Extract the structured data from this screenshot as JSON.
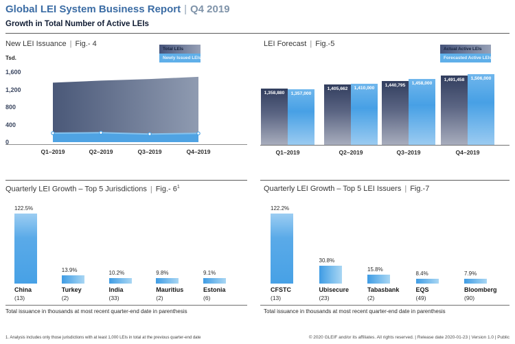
{
  "header": {
    "title": "Global LEI System Business Report",
    "separator": "|",
    "period": "Q4 2019",
    "subtitle": "Growth in Total Number of Active LEIs"
  },
  "footer": {
    "footnote": "1. Analysis includes only those jurisdictions with at least 1,000 LEIs in total at the previous quarter-end date",
    "copyright": "© 2020 GLEIF and/or its affiliates. All rights reserved.  |  Release date 2020-01-23  |  Version 1.0  |  Public"
  },
  "colors": {
    "title_blue": "#3b6ca4",
    "dark_series_top": "#323e5e",
    "dark_series_bottom": "#a8adbd",
    "light_blue_series": "#47a0e5",
    "area_gradient_left": "#4a5878",
    "area_gradient_right": "#8f9bb1"
  },
  "chart_data": [
    {
      "id": "fig4",
      "type": "area",
      "title": "New LEI Issuance",
      "figure": "Fig.- 4",
      "unit_label": "Tsd.",
      "legend": [
        "Total LEIs",
        "Newly Issued LEIs"
      ],
      "categories": [
        "Q1–2019",
        "Q2–2019",
        "Q3–2019",
        "Q4–2019"
      ],
      "series": [
        {
          "name": "Total LEIs",
          "values": [
            1359,
            1406,
            1441,
            1491
          ]
        },
        {
          "name": "Newly Issued LEIs",
          "values": [
            205,
            215,
            185,
            200
          ]
        }
      ],
      "yticks": [
        0,
        400,
        800,
        1200,
        1600
      ],
      "ylim": [
        0,
        1600
      ],
      "grid": false,
      "legend_position": "top-right"
    },
    {
      "id": "fig5",
      "type": "bar",
      "title": "LEI Forecast",
      "figure": "Fig.-5",
      "legend": [
        "Actual Active LEIs",
        "Forecasted Active LEIs"
      ],
      "categories": [
        "Q1–2019",
        "Q2–2019",
        "Q3–2019",
        "Q4–2019"
      ],
      "series": [
        {
          "name": "Actual Active LEIs",
          "values": [
            1358880,
            1405662,
            1440795,
            1491458
          ],
          "labels": [
            "1,358,880",
            "1,405,662",
            "1,440,795",
            "1,491,458"
          ]
        },
        {
          "name": "Forecasted Active LEIs",
          "values": [
            1357000,
            1410000,
            1458000,
            1506000
          ],
          "labels": [
            "1,357,000",
            "1,410,000",
            "1,458,000",
            "1,506,000"
          ]
        }
      ],
      "hidden_axis_min": 800000,
      "legend_position": "top-right"
    },
    {
      "id": "fig6",
      "type": "bar",
      "title": "Quarterly LEI Growth – Top 5 Jurisdictions",
      "figure": "Fig.- 6",
      "figure_superscript": "1",
      "categories": [
        "China",
        "Turkey",
        "India",
        "Mauritius",
        "Estonia"
      ],
      "counts": [
        "(13)",
        "(2)",
        "(33)",
        "(2)",
        "(6)"
      ],
      "values": [
        122.5,
        13.9,
        10.2,
        9.8,
        9.1
      ],
      "value_labels": [
        "122.5%",
        "13.9%",
        "10.2%",
        "9.8%",
        "9.1%"
      ],
      "note": "Total issuance in thousands at most recent quarter-end date in parenthesis"
    },
    {
      "id": "fig7",
      "type": "bar",
      "title": "Quarterly LEI Growth – Top 5 LEI Issuers",
      "figure": "Fig.-7",
      "categories": [
        "CFSTC",
        "Ubisecure",
        "Tabasbank",
        "EQS",
        "Bloomberg"
      ],
      "counts": [
        "(13)",
        "(23)",
        "(2)",
        "(49)",
        "(90)"
      ],
      "values": [
        122.2,
        30.8,
        15.8,
        8.4,
        7.9
      ],
      "value_labels": [
        "122.2%",
        "30.8%",
        "15.8%",
        "8.4%",
        "7.9%"
      ],
      "note": "Total issuance in thousands at most recent quarter-end date in parenthesis"
    }
  ]
}
